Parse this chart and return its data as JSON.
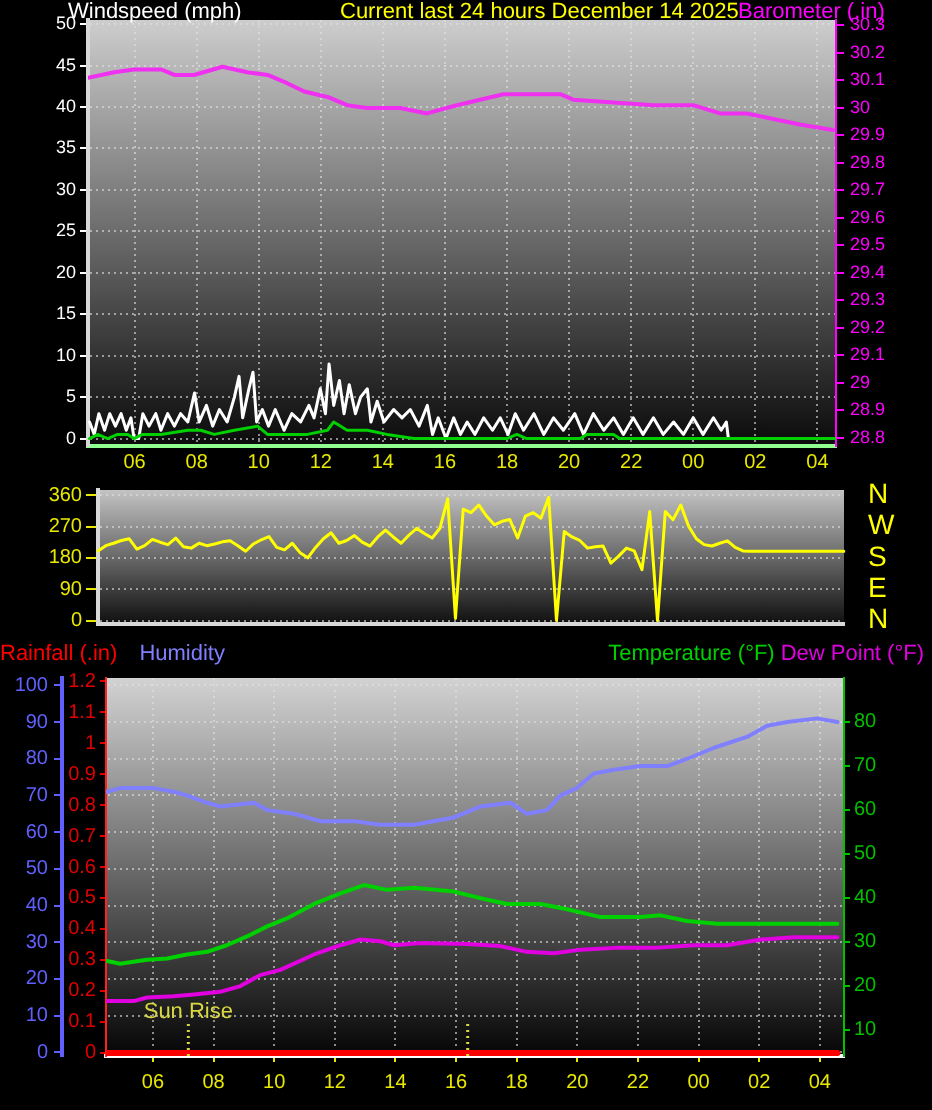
{
  "chart_data": [
    {
      "type": "line",
      "title": "Current last 24 hours December 14 2025",
      "ylabel": "Windspeed (mph)",
      "y2label": "Barometer (.in)",
      "xlim": [
        "2025-12-13T04:30",
        "2025-12-14T04:36"
      ],
      "xticks": [
        {
          "value": "2025-12-13T06:00",
          "label": "06"
        },
        {
          "value": "2025-12-13T08:00",
          "label": "08"
        },
        {
          "value": "2025-12-13T10:00",
          "label": "10"
        },
        {
          "value": "2025-12-13T12:00",
          "label": "12"
        },
        {
          "value": "2025-12-13T14:00",
          "label": "14"
        },
        {
          "value": "2025-12-13T16:00",
          "label": "16"
        },
        {
          "value": "2025-12-13T18:00",
          "label": "18"
        },
        {
          "value": "2025-12-13T20:00",
          "label": "20"
        },
        {
          "value": "2025-12-13T22:00",
          "label": "22"
        },
        {
          "value": "2025-12-14T00:00",
          "label": "00"
        },
        {
          "value": "2025-12-14T02:00",
          "label": "02"
        },
        {
          "value": "2025-12-14T04:00",
          "label": "04"
        }
      ],
      "ylim": [
        -0.9,
        50.5
      ],
      "yticks": [
        0,
        5,
        10,
        15,
        20,
        25,
        30,
        35,
        40,
        45,
        50
      ],
      "y2lim": [
        28.77,
        30.32
      ],
      "y2ticks": [
        28.8,
        28.9,
        29,
        29.1,
        29.2,
        29.3,
        29.4,
        29.5,
        29.6,
        29.7,
        29.8,
        29.9,
        30,
        30.1,
        30.2,
        30.3
      ],
      "grid": true,
      "marker": "none",
      "series": [
        {
          "color": "#ffffff",
          "x": [
            "2025-12-13T04:33",
            "2025-12-13T04:42",
            "2025-12-13T04:51",
            "2025-12-13T05:02",
            "2025-12-13T05:12",
            "2025-12-13T05:23",
            "2025-12-13T05:34",
            "2025-12-13T05:44",
            "2025-12-13T05:53",
            "2025-12-13T05:59",
            "2025-12-13T06:08",
            "2025-12-13T06:16",
            "2025-12-13T06:28",
            "2025-12-13T06:41",
            "2025-12-13T06:51",
            "2025-12-13T07:04",
            "2025-12-13T07:17",
            "2025-12-13T07:29",
            "2025-12-13T07:43",
            "2025-12-13T07:56",
            "2025-12-13T08:05",
            "2025-12-13T08:19",
            "2025-12-13T08:31",
            "2025-12-13T08:44",
            "2025-12-13T08:59",
            "2025-12-13T09:13",
            "2025-12-13T09:22",
            "2025-12-13T09:29",
            "2025-12-13T09:41",
            "2025-12-13T09:49",
            "2025-12-13T09:56",
            "2025-12-13T10:07",
            "2025-12-13T10:19",
            "2025-12-13T10:32",
            "2025-12-13T10:49",
            "2025-12-13T11:04",
            "2025-12-13T11:21",
            "2025-12-13T11:37",
            "2025-12-13T11:47",
            "2025-12-13T11:59",
            "2025-12-13T12:09",
            "2025-12-13T12:16",
            "2025-12-13T12:25",
            "2025-12-13T12:36",
            "2025-12-13T12:45",
            "2025-12-13T12:55",
            "2025-12-13T13:07",
            "2025-12-13T13:17",
            "2025-12-13T13:30",
            "2025-12-13T13:37",
            "2025-12-13T13:49",
            "2025-12-13T14:02",
            "2025-12-13T14:21",
            "2025-12-13T14:37",
            "2025-12-13T14:53",
            "2025-12-13T15:10",
            "2025-12-13T15:26",
            "2025-12-13T15:36",
            "2025-12-13T15:47",
            "2025-12-13T16:02",
            "2025-12-13T16:17",
            "2025-12-13T16:30",
            "2025-12-13T16:43",
            "2025-12-13T16:58",
            "2025-12-13T17:15",
            "2025-12-13T17:32",
            "2025-12-13T17:47",
            "2025-12-13T18:02",
            "2025-12-13T18:16",
            "2025-12-13T18:32",
            "2025-12-13T18:52",
            "2025-12-13T19:11",
            "2025-12-13T19:30",
            "2025-12-13T19:49",
            "2025-12-13T20:11",
            "2025-12-13T20:28",
            "2025-12-13T20:47",
            "2025-12-13T21:07",
            "2025-12-13T21:26",
            "2025-12-13T21:45",
            "2025-12-13T22:04",
            "2025-12-13T22:23",
            "2025-12-13T22:43",
            "2025-12-13T23:02",
            "2025-12-13T23:22",
            "2025-12-13T23:41",
            "2025-12-14T00:00",
            "2025-12-14T00:19",
            "2025-12-14T00:39",
            "2025-12-14T00:54",
            "2025-12-14T01:04",
            "2025-12-14T01:08",
            "2025-12-14T04:34"
          ],
          "values": [
            2,
            0.5,
            3,
            1,
            3,
            1.5,
            3,
            1,
            2.5,
            0,
            0,
            3,
            1.5,
            3,
            1,
            3,
            1.5,
            3,
            2,
            5.5,
            2,
            4,
            1.5,
            3.5,
            2,
            5,
            7.5,
            2.5,
            6,
            8,
            2,
            3.5,
            1.5,
            3.5,
            1,
            3,
            2,
            4,
            2.5,
            6,
            3,
            9,
            4,
            7,
            3,
            6.5,
            3,
            5,
            6,
            2,
            4.5,
            2,
            3.5,
            2.5,
            3.5,
            1.5,
            4,
            0.5,
            2.5,
            0,
            2.5,
            0.5,
            2,
            0.5,
            2.5,
            1,
            2.5,
            0.5,
            3,
            1,
            3,
            0.5,
            2.5,
            1,
            3,
            0.5,
            3,
            1,
            2.5,
            0.5,
            2.5,
            0.5,
            2.5,
            0.5,
            2,
            0.5,
            2.5,
            0.5,
            2.5,
            1,
            2,
            0,
            0
          ]
        },
        {
          "color": "#00d000",
          "x": [
            "2025-12-13T04:33",
            "2025-12-13T04:49",
            "2025-12-13T05:08",
            "2025-12-13T05:27",
            "2025-12-13T05:47",
            "2025-12-13T05:59",
            "2025-12-13T06:15",
            "2025-12-13T06:51",
            "2025-12-13T07:43",
            "2025-12-13T08:08",
            "2025-12-13T08:34",
            "2025-12-13T09:13",
            "2025-12-13T09:58",
            "2025-12-13T10:17",
            "2025-12-13T10:55",
            "2025-12-13T11:34",
            "2025-12-13T12:13",
            "2025-12-13T12:25",
            "2025-12-13T12:51",
            "2025-12-13T13:30",
            "2025-12-13T14:08",
            "2025-12-13T15:00",
            "2025-12-13T18:00",
            "2025-12-13T18:19",
            "2025-12-13T18:38",
            "2025-12-13T20:22",
            "2025-12-13T20:34",
            "2025-12-13T21:26",
            "2025-12-13T21:38",
            "2025-12-14T04:34"
          ],
          "values": [
            0,
            0.5,
            0,
            0.5,
            0.5,
            0,
            0.5,
            0.5,
            1,
            1,
            0.5,
            1,
            1.5,
            0.5,
            0.5,
            0.5,
            1,
            2,
            1,
            1,
            0.5,
            0,
            0,
            0.5,
            0,
            0,
            0.5,
            0.5,
            0,
            0
          ]
        },
        {
          "color": "#f030f0",
          "axis": "y2",
          "x": [
            "2025-12-13T04:30",
            "2025-12-13T05:21",
            "2025-12-13T05:59",
            "2025-12-13T06:51",
            "2025-12-13T07:17",
            "2025-12-13T07:55",
            "2025-12-13T08:50",
            "2025-12-13T09:38",
            "2025-12-13T10:17",
            "2025-12-13T10:55",
            "2025-12-13T11:28",
            "2025-12-13T12:13",
            "2025-12-13T12:51",
            "2025-12-13T13:29",
            "2025-12-13T14:34",
            "2025-12-13T15:25",
            "2025-12-13T16:23",
            "2025-12-13T17:08",
            "2025-12-13T17:53",
            "2025-12-13T18:52",
            "2025-12-13T19:43",
            "2025-12-13T20:08",
            "2025-12-13T21:26",
            "2025-12-13T22:43",
            "2025-12-14T00:00",
            "2025-12-14T00:52",
            "2025-12-14T01:43",
            "2025-12-14T02:35",
            "2025-12-14T03:26",
            "2025-12-14T04:30"
          ],
          "values": [
            30.11,
            30.13,
            30.14,
            30.14,
            30.12,
            30.12,
            30.15,
            30.13,
            30.12,
            30.09,
            30.06,
            30.04,
            30.01,
            30.0,
            30.0,
            29.98,
            30.01,
            30.03,
            30.05,
            30.05,
            30.05,
            30.03,
            30.02,
            30.01,
            30.01,
            29.98,
            29.98,
            29.96,
            29.94,
            29.92
          ]
        }
      ]
    },
    {
      "type": "line",
      "categories": [
        null,
        null,
        null,
        null,
        null,
        null,
        null,
        null,
        null,
        null,
        null,
        null,
        null,
        null,
        null,
        null,
        null,
        null,
        null,
        null,
        null,
        null,
        null,
        null,
        null,
        null,
        null,
        null,
        null,
        null,
        null,
        null,
        null,
        null,
        null,
        null,
        null,
        null,
        null,
        null,
        null,
        null,
        null,
        null,
        null,
        null,
        null,
        null,
        null,
        null,
        null,
        null,
        null,
        null,
        null,
        null,
        null,
        null,
        null,
        null,
        null,
        null,
        null,
        null,
        null,
        null,
        null,
        null,
        null,
        null,
        null,
        null,
        null,
        null,
        null,
        null,
        null,
        null,
        null,
        null,
        null,
        null,
        null,
        null,
        null,
        null,
        null,
        null,
        null,
        null,
        null,
        null,
        null,
        null,
        null,
        null,
        null
      ],
      "ylim": [
        -10,
        375
      ],
      "yticks": [
        0,
        90,
        180,
        270,
        360
      ],
      "annotations": [
        "N",
        "W",
        "S",
        "E",
        "N"
      ],
      "grid": "y",
      "marker": "none",
      "series": [
        {
          "color": "#ffff00",
          "values": [
            200,
            215,
            222,
            230,
            235,
            205,
            215,
            233,
            225,
            218,
            237,
            212,
            208,
            222,
            215,
            220,
            226,
            229,
            215,
            199,
            220,
            232,
            241,
            210,
            203,
            222,
            195,
            180,
            210,
            235,
            252,
            222,
            230,
            244,
            225,
            214,
            240,
            260,
            240,
            222,
            245,
            265,
            250,
            237,
            265,
            350,
            6,
            320,
            310,
            332,
            300,
            275,
            285,
            290,
            237,
            300,
            310,
            294,
            354,
            0,
            256,
            240,
            230,
            208,
            212,
            214,
            165,
            185,
            208,
            200,
            146,
            313,
            0,
            313,
            290,
            332,
            271,
            235,
            218,
            214,
            222,
            229,
            210,
            200,
            199,
            199,
            199,
            199,
            199,
            199,
            199,
            199,
            199,
            199,
            199,
            199,
            199
          ]
        }
      ]
    },
    {
      "type": "line",
      "xlim": [
        "2025-12-13T04:27",
        "2025-12-14T04:48"
      ],
      "xticks": [
        {
          "value": "2025-12-13T06:00",
          "label": "06"
        },
        {
          "value": "2025-12-13T08:00",
          "label": "08"
        },
        {
          "value": "2025-12-13T10:00",
          "label": "10"
        },
        {
          "value": "2025-12-13T12:00",
          "label": "12"
        },
        {
          "value": "2025-12-13T14:00",
          "label": "14"
        },
        {
          "value": "2025-12-13T16:00",
          "label": "16"
        },
        {
          "value": "2025-12-13T18:00",
          "label": "18"
        },
        {
          "value": "2025-12-13T20:00",
          "label": "20"
        },
        {
          "value": "2025-12-13T22:00",
          "label": "22"
        },
        {
          "value": "2025-12-14T00:00",
          "label": "00"
        },
        {
          "value": "2025-12-14T02:00",
          "label": "02"
        },
        {
          "value": "2025-12-14T04:00",
          "label": "04"
        }
      ],
      "ylim": [
        -1,
        102
      ],
      "yticks": [
        0,
        10,
        20,
        30,
        40,
        50,
        60,
        70,
        80,
        90,
        100
      ],
      "y2lim": [
        4,
        90
      ],
      "y2ticks": [
        10,
        20,
        30,
        40,
        50,
        60,
        70,
        80
      ],
      "y3lim": [
        -0.01,
        1.21
      ],
      "y3ticks": [
        0,
        0.1,
        0.2,
        0.3,
        0.4,
        0.5,
        0.6,
        0.7,
        0.8,
        0.9,
        1,
        1.1,
        1.2
      ],
      "grid": true,
      "legend": "top",
      "marker": "none",
      "ref_lines": [
        {
          "axis": "x",
          "value": "2025-12-13T07:10",
          "label": "Sun Rise",
          "color": "#d8d840",
          "line_style": "dotted"
        },
        {
          "axis": "x",
          "value": "2025-12-13T16:23",
          "color": "#d8d840",
          "line_style": "dotted"
        }
      ],
      "series": [
        {
          "name": "Rainfall (.in)",
          "color": "#ff0000",
          "axis": "y3",
          "x": [
            "2025-12-13T04:29",
            "2025-12-14T04:35"
          ],
          "values": [
            0,
            0
          ]
        },
        {
          "name": "Humidity",
          "color": "#8080ff",
          "x": [
            "2025-12-13T04:29",
            "2025-12-13T04:55",
            "2025-12-13T06:02",
            "2025-12-13T06:41",
            "2025-12-13T07:07",
            "2025-12-13T07:47",
            "2025-12-13T08:13",
            "2025-12-13T09:20",
            "2025-12-13T09:46",
            "2025-12-13T10:39",
            "2025-12-13T11:31",
            "2025-12-13T12:38",
            "2025-12-13T13:30",
            "2025-12-13T14:37",
            "2025-12-13T15:56",
            "2025-12-13T16:49",
            "2025-12-13T17:48",
            "2025-12-13T18:20",
            "2025-12-13T19:00",
            "2025-12-13T19:27",
            "2025-12-13T19:59",
            "2025-12-13T20:33",
            "2025-12-13T21:13",
            "2025-12-13T22:05",
            "2025-12-13T22:58",
            "2025-12-13T23:38",
            "2025-12-14T00:31",
            "2025-12-14T01:37",
            "2025-12-14T02:16",
            "2025-12-14T02:56",
            "2025-12-14T03:55",
            "2025-12-14T04:35"
          ],
          "values": [
            71,
            72,
            72,
            71,
            70,
            68,
            67,
            68,
            66,
            65,
            63,
            63,
            62,
            62,
            64,
            67,
            68,
            65,
            66,
            70,
            72,
            76,
            77,
            78,
            78,
            80,
            83,
            86,
            89,
            90,
            91,
            90
          ]
        },
        {
          "name": "Temperature (°F)",
          "color": "#00d000",
          "axis": "y2",
          "x": [
            "2025-12-13T04:29",
            "2025-12-13T04:55",
            "2025-12-13T05:48",
            "2025-12-13T06:28",
            "2025-12-13T07:07",
            "2025-12-13T07:47",
            "2025-12-13T08:26",
            "2025-12-13T09:06",
            "2025-12-13T09:46",
            "2025-12-13T10:25",
            "2025-12-13T11:19",
            "2025-12-13T12:11",
            "2025-12-13T12:58",
            "2025-12-13T13:43",
            "2025-12-13T14:37",
            "2025-12-13T15:56",
            "2025-12-13T16:49",
            "2025-12-13T17:41",
            "2025-12-13T18:47",
            "2025-12-13T19:40",
            "2025-12-13T20:46",
            "2025-12-13T22:05",
            "2025-12-13T22:45",
            "2025-12-13T23:37",
            "2025-12-14T00:37",
            "2025-12-14T02:16",
            "2025-12-14T04:35"
          ],
          "values": [
            25.6,
            25,
            25.9,
            26.2,
            27.1,
            27.7,
            29.2,
            31.2,
            33.5,
            35.3,
            38.6,
            41,
            42.9,
            41.8,
            42.3,
            41.4,
            39.9,
            38.6,
            38.6,
            37.4,
            35.6,
            35.6,
            36,
            34.7,
            34.1,
            34.1,
            34.1
          ]
        },
        {
          "name": "Dew Point (°F)",
          "color": "#e000e0",
          "axis": "y2",
          "x": [
            "2025-12-13T04:29",
            "2025-12-13T05:22",
            "2025-12-13T05:48",
            "2025-12-13T06:41",
            "2025-12-13T07:21",
            "2025-12-13T08:13",
            "2025-12-13T08:53",
            "2025-12-13T09:32",
            "2025-12-13T10:12",
            "2025-12-13T11:19",
            "2025-12-13T12:11",
            "2025-12-13T12:51",
            "2025-12-13T13:30",
            "2025-12-13T13:57",
            "2025-12-13T14:50",
            "2025-12-13T16:22",
            "2025-12-13T17:28",
            "2025-12-13T18:20",
            "2025-12-13T19:14",
            "2025-12-13T20:07",
            "2025-12-13T21:13",
            "2025-12-13T22:32",
            "2025-12-13T23:51",
            "2025-12-14T00:57",
            "2025-12-14T02:03",
            "2025-12-14T03:09",
            "2025-12-14T04:35"
          ],
          "values": [
            16.5,
            16.5,
            17.3,
            17.6,
            18,
            18.6,
            19.9,
            22.4,
            23.6,
            27.1,
            29.2,
            30.5,
            30.1,
            29.2,
            29.7,
            29.5,
            29,
            27.7,
            27.4,
            28.2,
            28.6,
            28.6,
            29.2,
            29.2,
            30.5,
            31,
            31
          ]
        }
      ]
    }
  ]
}
